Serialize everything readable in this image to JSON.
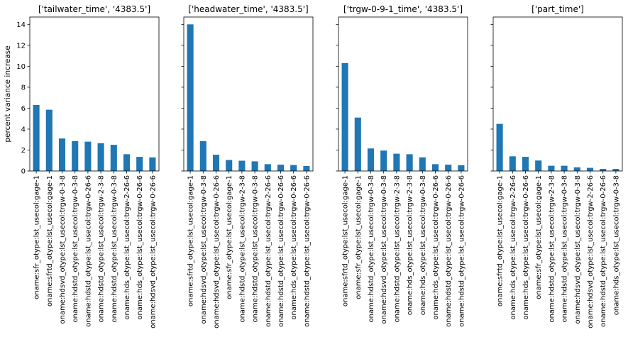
{
  "chart_data": [
    {
      "type": "bar",
      "title": "['tailwater_time', '4383.5']",
      "ylabel": "percent variance increase",
      "xlabel": "",
      "ylim": [
        0,
        14.7
      ],
      "yticks": [
        0,
        2,
        4,
        6,
        8,
        10,
        12,
        14
      ],
      "bar_color": "#1f77b4",
      "categories": [
        "oname:sfr_otype:lst_usecol:gage-1",
        "oname:sfrtd_otype:lst_usecol:gage-1",
        "oname:hdsvd_otype:lst_usecol:trgw-0-3-8",
        "oname:hdstd_otype:lst_usecol:trgw-0-3-8",
        "oname:hdstd_otype:lst_usecol:trgw-0-26-6",
        "oname:hdstd_otype:lst_usecol:trgw-2-3-8",
        "oname:hdstd_otype:lst_usecol:trgw-0-3-8",
        "oname:hds_otype:lst_usecol:trgw-2-26-6",
        "oname:hds_otype:lst_usecol:trgw-0-26-6",
        "oname:hdsvd_otype:lst_usecol:trgw-0-26-6"
      ],
      "values": [
        6.3,
        5.85,
        3.1,
        2.85,
        2.8,
        2.65,
        2.5,
        1.6,
        1.35,
        1.3
      ]
    },
    {
      "type": "bar",
      "title": "['headwater_time', '4383.5']",
      "ylim": [
        0,
        14.7
      ],
      "bar_color": "#1f77b4",
      "categories": [
        "oname:sfrtd_otype:lst_usecol:gage-1",
        "oname:hdsvd_otype:lst_usecol:trgw-0-3-8",
        "oname:hdsvd_otype:lst_usecol:trgw-0-26-6",
        "oname:sfr_otype:lst_usecol:gage-1",
        "oname:hdstd_otype:lst_usecol:trgw-2-3-8",
        "oname:hdstd_otype:lst_usecol:trgw-0-3-8",
        "oname:hdstd_otype:lst_usecol:trgw-2-26-6",
        "oname:hdstd_otype:lst_usecol:trgw-0-26-6",
        "oname:hds_otype:lst_usecol:trgw-0-26-6",
        "oname:hdstd_otype:lst_usecol:trgw-0-26-6"
      ],
      "values": [
        14.0,
        2.85,
        1.55,
        1.05,
        0.98,
        0.92,
        0.65,
        0.6,
        0.57,
        0.48
      ]
    },
    {
      "type": "bar",
      "title": "['trgw-0-9-1_time', '4383.5']",
      "ylim": [
        0,
        14.7
      ],
      "bar_color": "#1f77b4",
      "categories": [
        "oname:sfrtd_otype:lst_usecol:gage-1",
        "oname:sfr_otype:lst_usecol:gage-1",
        "oname:hdstd_otype:lst_usecol:trgw-0-3-8",
        "oname:hdsvd_otype:lst_usecol:trgw-0-3-8",
        "oname:hdstd_otype:lst_usecol:trgw-2-3-8",
        "oname:hds_otype:lst_usecol:trgw-2-3-8",
        "oname:hds_otype:lst_usecol:trgw-0-3-8",
        "oname:hds_otype:lst_usecol:trgw-0-26-6",
        "oname:hdstd_otype:lst_usecol:trgw-0-26-6",
        "oname:hdstd_otype:lst_usecol:trgw-0-26-6"
      ],
      "values": [
        10.3,
        5.1,
        2.15,
        1.95,
        1.65,
        1.6,
        1.3,
        0.65,
        0.6,
        0.55
      ]
    },
    {
      "type": "bar",
      "title": "['part_time']",
      "ylim": [
        0,
        14.7
      ],
      "bar_color": "#1f77b4",
      "categories": [
        "oname:sfrtd_otype:lst_usecol:gage-1",
        "oname:hds_otype:lst_usecol:trgw-2-26-6",
        "oname:hds_otype:lst_usecol:trgw-0-26-6",
        "oname:sfr_otype:lst_usecol:gage-1",
        "oname:hdstd_otype:lst_usecol:trgw-2-3-8",
        "oname:hdstd_otype:lst_usecol:trgw-0-3-8",
        "oname:hdsvd_otype:lst_usecol:trgw-0-3-8",
        "oname:hdsvd_otype:lst_usecol:trgw-2-26-6",
        "oname:hdstd_otype:lst_usecol:trgw-0-26-6",
        "oname:hds_otype:lst_usecol:trgw-0-3-8"
      ],
      "values": [
        4.5,
        1.4,
        1.35,
        1.0,
        0.5,
        0.5,
        0.35,
        0.3,
        0.2,
        0.2
      ]
    }
  ]
}
